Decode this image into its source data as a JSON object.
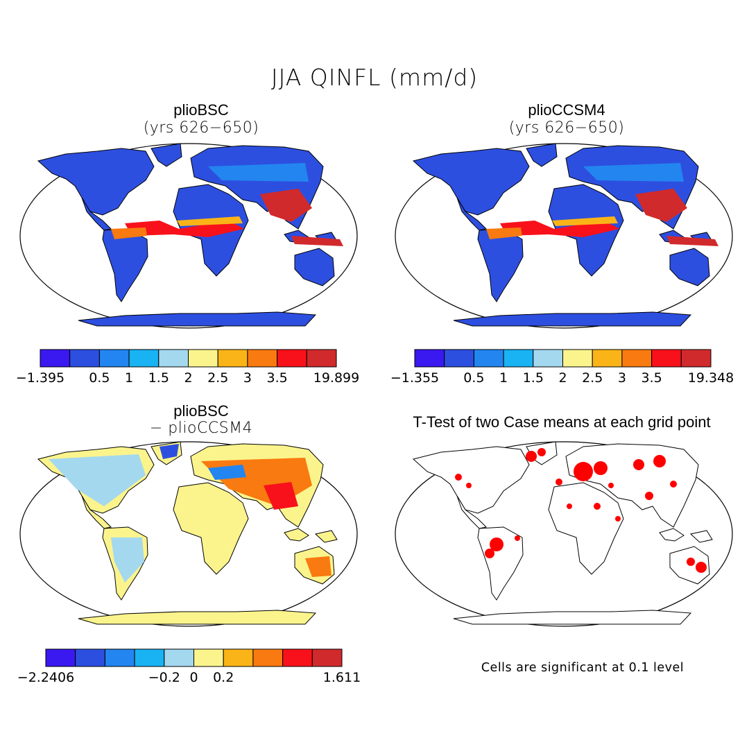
{
  "figure": {
    "title": "JJA QINFL (mm/d)"
  },
  "colors": [
    "#3a18f0",
    "#2d4fe0",
    "#2385ef",
    "#19b2f2",
    "#a4d8ef",
    "#fbf48d",
    "#fbb418",
    "#f97a10",
    "#f8111a",
    "#d12a2c"
  ],
  "panels": [
    {
      "title": "plioBSC",
      "subtitle": "(yrs 626−650)",
      "map": "field-mean-case1",
      "colorbar": {
        "labels": [
          "−1.395",
          "0.5",
          "1",
          "1.5",
          "2",
          "2.5",
          "3",
          "3.5",
          "19.899"
        ]
      }
    },
    {
      "title": "plioCCSM4",
      "subtitle": "(yrs 626−650)",
      "map": "field-mean-case2",
      "colorbar": {
        "labels": [
          "−1.355",
          "0.5",
          "1",
          "1.5",
          "2",
          "2.5",
          "3",
          "3.5",
          "19.348"
        ]
      }
    },
    {
      "title": "plioBSC",
      "subtitle": "− plioCCSM4",
      "map": "field-difference",
      "colorbar": {
        "labels": [
          "−2.2406",
          "−0.2",
          "0",
          "0.2",
          "1.611"
        ]
      }
    },
    {
      "title": "T-Test of two Case means at each grid point",
      "map": "significance-mask",
      "note": "Cells are significant at 0.1 level"
    }
  ]
}
